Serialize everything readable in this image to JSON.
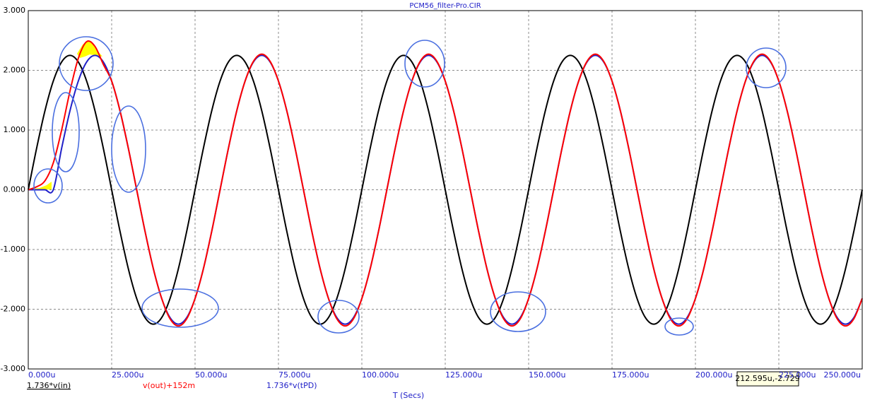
{
  "chart_data": {
    "type": "line",
    "title": "PCM56_filter-Pro.CIR",
    "x_label": "T (Secs)",
    "cursor_label": "212.595u,-2.729",
    "x": [
      0,
      2.5,
      5,
      7.5,
      10,
      12.5,
      15,
      17.5,
      20,
      22.5,
      25,
      27.5,
      30,
      32.5,
      35,
      37.5,
      40,
      42.5,
      45,
      47.5,
      50,
      52.5,
      55,
      57.5,
      60,
      62.5,
      65,
      67.5,
      70,
      72.5,
      75,
      77.5,
      80,
      82.5,
      85,
      87.5,
      90,
      92.5,
      95,
      97.5,
      100,
      102.5,
      105,
      107.5,
      110,
      112.5,
      115,
      117.5,
      120,
      122.5,
      125,
      127.5,
      130,
      132.5,
      135,
      137.5,
      140,
      142.5,
      145,
      147.5,
      150,
      152.5,
      155,
      157.5,
      160,
      162.5,
      165,
      167.5,
      170,
      172.5,
      175,
      177.5,
      180,
      182.5,
      185,
      187.5,
      190,
      192.5,
      195,
      197.5,
      200,
      202.5,
      205,
      207.5,
      210,
      212.5,
      215,
      217.5,
      220,
      222.5,
      225,
      227.5,
      230,
      232.5,
      235,
      237.5,
      240,
      242.5,
      245,
      247.5,
      250
    ],
    "series": [
      {
        "name": "1.736*v(in)",
        "color": "#000000",
        "values": [
          0,
          0.695,
          1.323,
          1.82,
          2.14,
          2.25,
          2.14,
          1.82,
          1.323,
          0.695,
          0,
          -0.695,
          -1.323,
          -1.82,
          -2.14,
          -2.25,
          -2.14,
          -1.82,
          -1.323,
          -0.695,
          0,
          0.695,
          1.323,
          1.82,
          2.14,
          2.25,
          2.14,
          1.82,
          1.323,
          0.695,
          0,
          -0.695,
          -1.323,
          -1.82,
          -2.14,
          -2.25,
          -2.14,
          -1.82,
          -1.323,
          -0.695,
          0,
          0.695,
          1.323,
          1.82,
          2.14,
          2.25,
          2.14,
          1.82,
          1.323,
          0.695,
          0,
          -0.695,
          -1.323,
          -1.82,
          -2.14,
          -2.25,
          -2.14,
          -1.82,
          -1.323,
          -0.695,
          0,
          0.695,
          1.323,
          1.82,
          2.14,
          2.25,
          2.14,
          1.82,
          1.323,
          0.695,
          0,
          -0.695,
          -1.323,
          -1.82,
          -2.14,
          -2.25,
          -2.14,
          -1.82,
          -1.323,
          -0.695,
          0,
          0.695,
          1.323,
          1.82,
          2.14,
          2.25,
          2.14,
          1.82,
          1.323,
          0.695,
          0,
          -0.695,
          -1.323,
          -1.82,
          -2.14,
          -2.25,
          -2.14,
          -1.82,
          -1.323,
          -0.695,
          0
        ]
      },
      {
        "name": "v(out)+152m",
        "color": "#ff0000",
        "values": [
          0,
          0.05,
          0.15,
          0.45,
          1.0,
          1.65,
          2.2,
          2.48,
          2.4,
          2.1,
          1.82,
          1.323,
          0.695,
          0,
          -0.695,
          -1.323,
          -1.82,
          -2.16,
          -2.28,
          -2.16,
          -1.82,
          -1.323,
          -0.695,
          0,
          0.695,
          1.323,
          1.82,
          2.15,
          2.27,
          2.15,
          1.82,
          1.323,
          0.695,
          0,
          -0.695,
          -1.323,
          -1.82,
          -2.16,
          -2.28,
          -2.16,
          -1.82,
          -1.323,
          -0.695,
          0,
          0.695,
          1.323,
          1.82,
          2.15,
          2.27,
          2.15,
          1.82,
          1.323,
          0.695,
          0,
          -0.695,
          -1.323,
          -1.82,
          -2.16,
          -2.28,
          -2.16,
          -1.82,
          -1.323,
          -0.695,
          0,
          0.695,
          1.323,
          1.82,
          2.15,
          2.27,
          2.15,
          1.82,
          1.323,
          0.695,
          0,
          -0.695,
          -1.323,
          -1.82,
          -2.16,
          -2.28,
          -2.16,
          -1.82,
          -1.323,
          -0.695,
          0,
          0.695,
          1.323,
          1.82,
          2.15,
          2.27,
          2.15,
          1.82,
          1.323,
          0.695,
          0,
          -0.695,
          -1.323,
          -1.82,
          -2.16,
          -2.28,
          -2.16,
          -1.82
        ]
      },
      {
        "name": "1.736*v(tPD)",
        "color": "#2020c8",
        "values": [
          0,
          0,
          0,
          0,
          0.695,
          1.323,
          1.82,
          2.14,
          2.25,
          2.14,
          1.82,
          1.323,
          0.695,
          0,
          -0.695,
          -1.323,
          -1.82,
          -2.14,
          -2.25,
          -2.14,
          -1.82,
          -1.323,
          -0.695,
          0,
          0.695,
          1.323,
          1.82,
          2.14,
          2.25,
          2.14,
          1.82,
          1.323,
          0.695,
          0,
          -0.695,
          -1.323,
          -1.82,
          -2.14,
          -2.25,
          -2.14,
          -1.82,
          -1.323,
          -0.695,
          0,
          0.695,
          1.323,
          1.82,
          2.14,
          2.25,
          2.14,
          1.82,
          1.323,
          0.695,
          0,
          -0.695,
          -1.323,
          -1.82,
          -2.14,
          -2.25,
          -2.14,
          -1.82,
          -1.323,
          -0.695,
          0,
          0.695,
          1.323,
          1.82,
          2.14,
          2.25,
          2.14,
          1.82,
          1.323,
          0.695,
          0,
          -0.695,
          -1.323,
          -1.82,
          -2.14,
          -2.25,
          -2.14,
          -1.82,
          -1.323,
          -0.695,
          0,
          0.695,
          1.323,
          1.82,
          2.14,
          2.25,
          2.14,
          1.82,
          1.323,
          0.695,
          0,
          -0.695,
          -1.323,
          -1.82,
          -2.14,
          -2.25,
          -2.14,
          -1.82
        ]
      }
    ],
    "xlim": [
      0,
      250
    ],
    "ylim": [
      -3,
      3
    ],
    "xticks": [
      {
        "value": 0,
        "label": "0.000u"
      },
      {
        "value": 25,
        "label": "25.000u"
      },
      {
        "value": 50,
        "label": "50.000u"
      },
      {
        "value": 75,
        "label": "75.000u"
      },
      {
        "value": 100,
        "label": "100.000u"
      },
      {
        "value": 125,
        "label": "125.000u"
      },
      {
        "value": 150,
        "label": "150.000u"
      },
      {
        "value": 175,
        "label": "175.000u"
      },
      {
        "value": 200,
        "label": "200.000u"
      },
      {
        "value": 225,
        "label": "225.000u"
      },
      {
        "value": 250,
        "label": "250.000u"
      }
    ],
    "yticks": [
      {
        "value": -3,
        "label": "-3.000"
      },
      {
        "value": -2,
        "label": "-2.000"
      },
      {
        "value": -1,
        "label": "-1.000"
      },
      {
        "value": 0,
        "label": "0.000"
      },
      {
        "value": 1,
        "label": "1.000"
      },
      {
        "value": 2,
        "label": "2.000"
      },
      {
        "value": 3,
        "label": "3.000"
      }
    ],
    "grid": true
  }
}
